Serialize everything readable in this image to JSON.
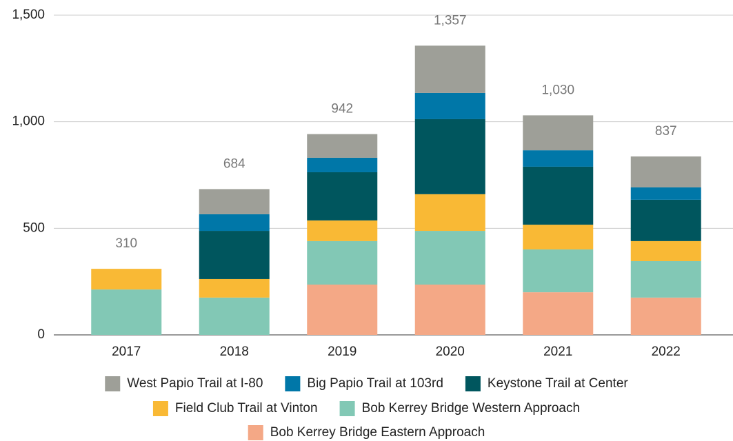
{
  "chart_data": {
    "type": "stacked_bar",
    "categories": [
      "2017",
      "2018",
      "2019",
      "2020",
      "2021",
      "2022"
    ],
    "series": [
      {
        "name": "West Papio Trail at I-80",
        "color": "#9e9f98",
        "values": [
          0,
          118,
          111,
          222,
          164,
          145
        ]
      },
      {
        "name": "Big Papio Trail at 103rd",
        "color": "#0077a8",
        "values": [
          0,
          78,
          68,
          123,
          77,
          58
        ]
      },
      {
        "name": "Keystone Trail at Center",
        "color": "#00565e",
        "values": [
          0,
          226,
          226,
          352,
          272,
          194
        ]
      },
      {
        "name": "Field Club Trail at Vinton",
        "color": "#f9b935",
        "values": [
          97,
          87,
          97,
          172,
          116,
          94
        ]
      },
      {
        "name": "Bob Kerrey Bridge Western Approach",
        "color": "#82c8b5",
        "values": [
          213,
          175,
          204,
          252,
          201,
          171
        ]
      },
      {
        "name": "Bob Kerrey Bridge Eastern Approach",
        "color": "#f4a886",
        "values": [
          0,
          0,
          236,
          236,
          200,
          175
        ]
      }
    ],
    "totals": [
      310,
      684,
      942,
      1357,
      1030,
      837
    ],
    "total_labels": [
      "310",
      "684",
      "942",
      "1,357",
      "1,030",
      "837"
    ],
    "ylim": [
      0,
      1500
    ],
    "yticks": [
      0,
      500,
      {
        "value": 1000,
        "label": "1,000"
      },
      {
        "value": 1500,
        "label": "1,500"
      }
    ],
    "grid": true
  }
}
